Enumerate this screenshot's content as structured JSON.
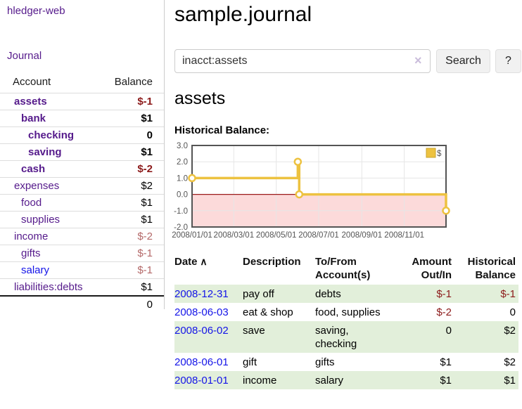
{
  "app": {
    "brand": "hledger-web",
    "nav": {
      "journal": "Journal"
    }
  },
  "colors": {
    "link_purple": "#551a8b",
    "link_blue": "#1414e8",
    "negative_strong": "#8c1a1a",
    "negative_soft": "#b46969",
    "row_shade_green": "#e2efda",
    "accent_gold": "#edc240"
  },
  "sidebar": {
    "columns": {
      "account": "Account",
      "balance": "Balance"
    },
    "accounts": [
      {
        "name": "assets",
        "level": 1,
        "bold": true,
        "balance": "$-1",
        "balance_color": "neg-strong",
        "link_color": "purple"
      },
      {
        "name": "bank",
        "level": 2,
        "bold": true,
        "balance": "$1",
        "balance_color": "normal",
        "link_color": "purple"
      },
      {
        "name": "checking",
        "level": 3,
        "bold": true,
        "balance": "0",
        "balance_color": "normal",
        "link_color": "purple"
      },
      {
        "name": "saving",
        "level": 3,
        "bold": true,
        "balance": "$1",
        "balance_color": "normal",
        "link_color": "purple"
      },
      {
        "name": "cash",
        "level": 2,
        "bold": true,
        "balance": "$-2",
        "balance_color": "neg-strong",
        "link_color": "purple"
      },
      {
        "name": "expenses",
        "level": 1,
        "bold": false,
        "balance": "$2",
        "balance_color": "normal",
        "link_color": "purple"
      },
      {
        "name": "food",
        "level": 2,
        "bold": false,
        "balance": "$1",
        "balance_color": "normal",
        "link_color": "purple"
      },
      {
        "name": "supplies",
        "level": 2,
        "bold": false,
        "balance": "$1",
        "balance_color": "normal",
        "link_color": "purple"
      },
      {
        "name": "income",
        "level": 1,
        "bold": false,
        "balance": "$-2",
        "balance_color": "neg-soft",
        "link_color": "purple"
      },
      {
        "name": "gifts",
        "level": 2,
        "bold": false,
        "balance": "$-1",
        "balance_color": "neg-soft",
        "link_color": "purple"
      },
      {
        "name": "salary",
        "level": 2,
        "bold": false,
        "balance": "$-1",
        "balance_color": "neg-soft",
        "link_color": "blue"
      },
      {
        "name": "liabilities:debts",
        "level": 1,
        "bold": false,
        "balance": "$1",
        "balance_color": "normal",
        "link_color": "purple"
      }
    ],
    "total": "0"
  },
  "main": {
    "title": "sample.journal",
    "search": {
      "value": "inacct:assets",
      "clear_icon": "×",
      "button": "Search",
      "help": "?"
    },
    "account_heading": "assets",
    "chart_heading": "Historical Balance:"
  },
  "chart_data": {
    "type": "line",
    "step": true,
    "title": "Historical Balance",
    "legend": {
      "label": "$",
      "position": "top-right"
    },
    "series": [
      {
        "name": "$",
        "color": "#edc240",
        "points": [
          {
            "date": "2008-01-01",
            "day": 0,
            "value": 1.0
          },
          {
            "date": "2008-06-01",
            "day": 152,
            "value": 2.0
          },
          {
            "date": "2008-06-03",
            "day": 154,
            "value": 0.0
          },
          {
            "date": "2008-12-31",
            "day": 365,
            "value": -1.0
          }
        ]
      }
    ],
    "xlim_days": [
      0,
      365
    ],
    "ylim": [
      -2.0,
      3.0
    ],
    "y_ticks": [
      {
        "value": 3,
        "label": "3.0"
      },
      {
        "value": 2,
        "label": "2.0"
      },
      {
        "value": 1,
        "label": "1.0"
      },
      {
        "value": 0,
        "label": "0.0"
      },
      {
        "value": -1,
        "label": "-1.0"
      },
      {
        "value": -2,
        "label": "-2.0"
      }
    ],
    "x_ticks": [
      {
        "day": 0,
        "label": "2008/01/01"
      },
      {
        "day": 60,
        "label": "2008/03/01"
      },
      {
        "day": 121,
        "label": "2008/05/01"
      },
      {
        "day": 182,
        "label": "2008/07/01"
      },
      {
        "day": 244,
        "label": "2008/09/01"
      },
      {
        "day": 305,
        "label": "2008/11/01"
      }
    ],
    "grid": true,
    "below_zero_fill": "#fcdada",
    "zero_line_color": "#9b1c1c",
    "border_color": "#545454",
    "grid_color": "#e6e6e6"
  },
  "register": {
    "columns": [
      {
        "label": "Date",
        "sort_icon": "∧",
        "align": "left"
      },
      {
        "label": "Description",
        "align": "left"
      },
      {
        "label": "To/From Account(s)",
        "align": "left"
      },
      {
        "label": "Amount Out/In",
        "align": "right"
      },
      {
        "label": "Historical Balance",
        "align": "right"
      }
    ],
    "rows": [
      {
        "date": "2008-12-31",
        "description": "pay off",
        "accounts": "debts",
        "amount": "$-1",
        "amount_negative": true,
        "balance": "$-1",
        "balance_negative": true,
        "shaded": true
      },
      {
        "date": "2008-06-03",
        "description": "eat & shop",
        "accounts": "food, supplies",
        "amount": "$-2",
        "amount_negative": true,
        "balance": "0",
        "balance_negative": false,
        "shaded": false
      },
      {
        "date": "2008-06-02",
        "description": "save",
        "accounts": "saving, checking",
        "amount": "0",
        "amount_negative": false,
        "balance": "$2",
        "balance_negative": false,
        "shaded": true
      },
      {
        "date": "2008-06-01",
        "description": "gift",
        "accounts": "gifts",
        "amount": "$1",
        "amount_negative": false,
        "balance": "$2",
        "balance_negative": false,
        "shaded": false
      },
      {
        "date": "2008-01-01",
        "description": "income",
        "accounts": "salary",
        "amount": "$1",
        "amount_negative": false,
        "balance": "$1",
        "balance_negative": false,
        "shaded": true
      }
    ]
  }
}
